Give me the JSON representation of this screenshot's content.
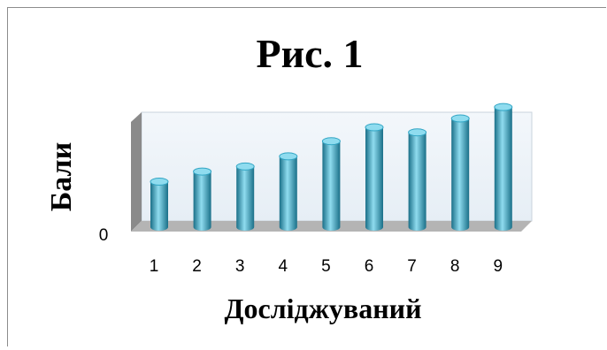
{
  "chart_data": {
    "type": "bar",
    "title": "Рис. 1",
    "xlabel": "Досліджуваний",
    "ylabel": "Бали",
    "categories": [
      "1",
      "2",
      "3",
      "4",
      "5",
      "6",
      "7",
      "8",
      "9"
    ],
    "values": [
      3.6,
      4.4,
      4.8,
      5.6,
      6.8,
      7.9,
      7.5,
      8.6,
      9.5
    ],
    "ylim": [
      0,
      10
    ],
    "yticks": [
      "0"
    ],
    "grid": false,
    "legend": "none",
    "bar_style": "3d-cylinder",
    "colors": {
      "bar": "#31a5c4",
      "bar_dark": "#1a6f88",
      "bar_light": "#8fdcef",
      "back_wall": "#e6eef5",
      "floor": "#b4b4b4",
      "side_wall": "#8a8a8a"
    }
  }
}
